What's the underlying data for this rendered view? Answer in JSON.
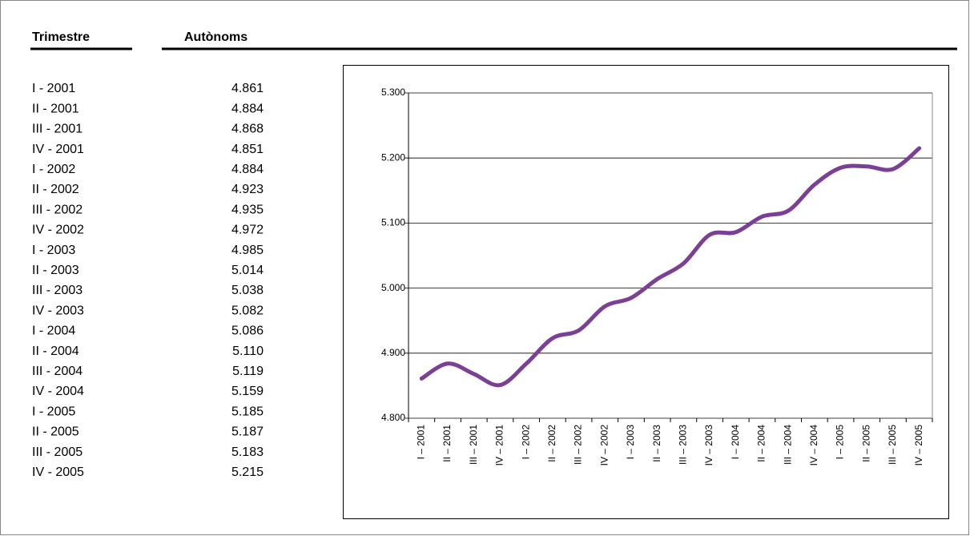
{
  "table": {
    "columns": [
      "Trimestre",
      "Autònoms"
    ],
    "rows": [
      [
        "I - 2001",
        "4.861"
      ],
      [
        "II - 2001",
        "4.884"
      ],
      [
        "III - 2001",
        "4.868"
      ],
      [
        "IV - 2001",
        "4.851"
      ],
      [
        "I - 2002",
        "4.884"
      ],
      [
        "II - 2002",
        "4.923"
      ],
      [
        "III - 2002",
        "4.935"
      ],
      [
        "IV - 2002",
        "4.972"
      ],
      [
        "I - 2003",
        "4.985"
      ],
      [
        "II - 2003",
        "5.014"
      ],
      [
        "III - 2003",
        "5.038"
      ],
      [
        "IV - 2003",
        "5.082"
      ],
      [
        "I - 2004",
        "5.086"
      ],
      [
        "II - 2004",
        "5.110"
      ],
      [
        "III - 2004",
        "5.119"
      ],
      [
        "IV - 2004",
        "5.159"
      ],
      [
        "I - 2005",
        "5.185"
      ],
      [
        "II - 2005",
        "5.187"
      ],
      [
        "III - 2005",
        "5.183"
      ],
      [
        "IV - 2005",
        "5.215"
      ]
    ]
  },
  "chart_data": {
    "type": "line",
    "categories": [
      "I – 2001",
      "II – 2001",
      "III – 2001",
      "IV – 2001",
      "I – 2002",
      "II – 2002",
      "III – 2002",
      "IV – 2002",
      "I – 2003",
      "II – 2003",
      "III – 2003",
      "IV – 2003",
      "I – 2004",
      "II – 2004",
      "III – 2004",
      "IV – 2004",
      "I – 2005",
      "II – 2005",
      "III – 2005",
      "IV – 2005"
    ],
    "values": [
      4861,
      4884,
      4868,
      4851,
      4884,
      4923,
      4935,
      4972,
      4985,
      5014,
      5038,
      5082,
      5086,
      5110,
      5119,
      5159,
      5185,
      5187,
      5183,
      5215
    ],
    "color": "#7b3f95",
    "ylim": [
      4800,
      5300
    ],
    "yticks": [
      {
        "value": 4800,
        "label": "4.800"
      },
      {
        "value": 4900,
        "label": "4.900"
      },
      {
        "value": 5000,
        "label": "5.000"
      },
      {
        "value": 5100,
        "label": "5.100"
      },
      {
        "value": 5200,
        "label": "5.200"
      },
      {
        "value": 5300,
        "label": "5.300"
      }
    ],
    "grid": true
  }
}
